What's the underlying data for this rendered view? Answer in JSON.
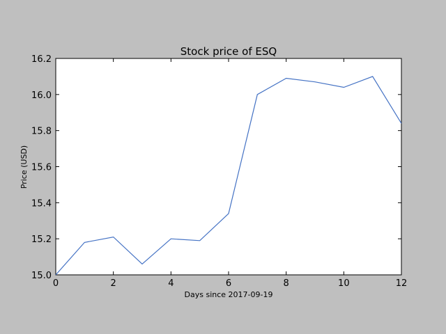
{
  "chart_data": {
    "type": "line",
    "title": "Stock price of ESQ",
    "xlabel": "Days since 2017-09-19",
    "ylabel": "Price (USD)",
    "x": [
      0,
      1,
      2,
      3,
      4,
      5,
      6,
      7,
      8,
      9,
      10,
      11,
      12
    ],
    "series": [
      {
        "values": [
          15.0,
          15.18,
          15.21,
          15.06,
          15.2,
          15.19,
          15.34,
          16.0,
          16.09,
          16.07,
          16.04,
          16.1,
          15.84
        ]
      }
    ],
    "xlim": [
      0,
      12
    ],
    "ylim": [
      15.0,
      16.2
    ],
    "xticks": [
      0,
      2,
      4,
      6,
      8,
      10,
      12
    ],
    "xtick_labels": [
      "0",
      "2",
      "4",
      "6",
      "8",
      "10",
      "12"
    ],
    "yticks": [
      15.0,
      15.2,
      15.4,
      15.6,
      15.8,
      16.0,
      16.2
    ],
    "ytick_labels": [
      "15.0",
      "15.2",
      "15.4",
      "15.6",
      "15.8",
      "16.0",
      "16.2"
    ],
    "grid": false,
    "colors": {
      "line": "#4472c4",
      "figure_bg": "#bfbfbf",
      "axes_bg": "#ffffff"
    }
  }
}
